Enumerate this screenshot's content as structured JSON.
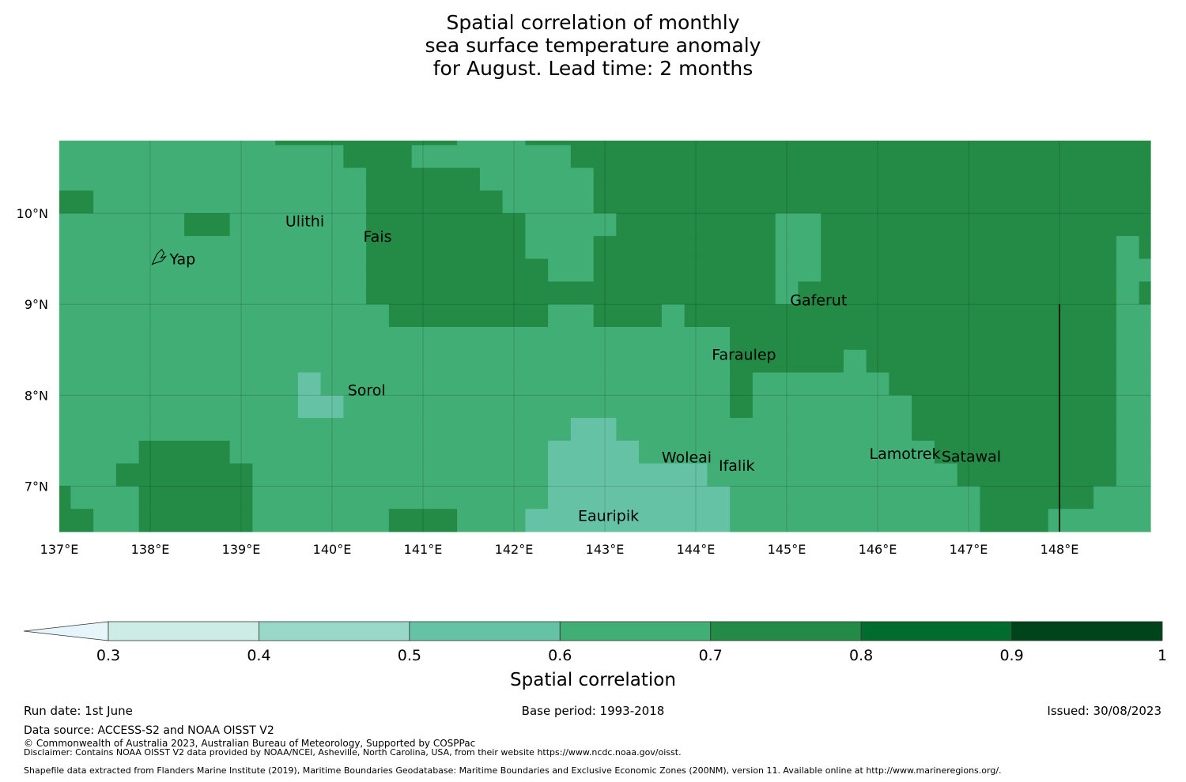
{
  "title": {
    "line1": "Spatial correlation of monthly",
    "line2": "sea surface temperature anomaly",
    "line3": "for August. Lead time: 2 months"
  },
  "map": {
    "lon_range": [
      137.0,
      149.0
    ],
    "lat_range": [
      6.5,
      10.8
    ],
    "x_ticks": [
      {
        "value": 137,
        "label": "137°E"
      },
      {
        "value": 138,
        "label": "138°E"
      },
      {
        "value": 139,
        "label": "139°E"
      },
      {
        "value": 140,
        "label": "140°E"
      },
      {
        "value": 141,
        "label": "141°E"
      },
      {
        "value": 142,
        "label": "142°E"
      },
      {
        "value": 143,
        "label": "143°E"
      },
      {
        "value": 144,
        "label": "144°E"
      },
      {
        "value": 145,
        "label": "145°E"
      },
      {
        "value": 146,
        "label": "146°E"
      },
      {
        "value": 147,
        "label": "147°E"
      },
      {
        "value": 148,
        "label": "148°E"
      }
    ],
    "y_ticks": [
      {
        "value": 10,
        "label": "10°N"
      },
      {
        "value": 9,
        "label": "9°N"
      },
      {
        "value": 8,
        "label": "8°N"
      },
      {
        "value": 7,
        "label": "7°N"
      }
    ],
    "islands": [
      {
        "name": "Yap",
        "lon": 138.1,
        "lat": 9.5
      },
      {
        "name": "Ulithi",
        "lon": 139.7,
        "lat": 9.92
      },
      {
        "name": "Fais",
        "lon": 140.5,
        "lat": 9.75
      },
      {
        "name": "Gaferut",
        "lon": 145.35,
        "lat": 9.05
      },
      {
        "name": "Faraulep",
        "lon": 144.53,
        "lat": 8.45
      },
      {
        "name": "Sorol",
        "lon": 140.38,
        "lat": 8.06
      },
      {
        "name": "Woleai",
        "lon": 143.9,
        "lat": 7.32
      },
      {
        "name": "Ifalik",
        "lon": 144.45,
        "lat": 7.23
      },
      {
        "name": "Lamotrek",
        "lon": 146.3,
        "lat": 7.36
      },
      {
        "name": "Satawal",
        "lon": 147.03,
        "lat": 7.33
      },
      {
        "name": "Eauripik",
        "lon": 143.04,
        "lat": 6.68
      }
    ],
    "boundary_line": {
      "lon": 148.0,
      "lat_from": 6.5,
      "lat_to": 9.0
    },
    "correlation_rows": [
      {
        "lat_top": 10.8,
        "lat_bottom": 10.75,
        "segments": [
          [
            137.0,
            139.375,
            0.65
          ],
          [
            139.375,
            140.25,
            0.75
          ],
          [
            140.25,
            141.375,
            0.75
          ],
          [
            141.375,
            142.125,
            0.65
          ],
          [
            142.125,
            149.0,
            0.75
          ]
        ]
      },
      {
        "lat_top": 10.75,
        "lat_bottom": 10.5,
        "segments": [
          [
            137.0,
            140.125,
            0.65
          ],
          [
            140.125,
            140.875,
            0.75
          ],
          [
            140.875,
            142.625,
            0.65
          ],
          [
            142.625,
            149.0,
            0.75
          ]
        ]
      },
      {
        "lat_top": 10.5,
        "lat_bottom": 10.25,
        "segments": [
          [
            137.0,
            140.375,
            0.65
          ],
          [
            140.375,
            141.625,
            0.75
          ],
          [
            141.625,
            141.875,
            0.65
          ],
          [
            141.875,
            142.125,
            0.65
          ],
          [
            142.125,
            142.875,
            0.65
          ],
          [
            142.875,
            149.0,
            0.75
          ]
        ]
      },
      {
        "lat_top": 10.25,
        "lat_bottom": 10.0,
        "segments": [
          [
            137.0,
            137.375,
            0.75
          ],
          [
            137.375,
            140.375,
            0.65
          ],
          [
            140.375,
            141.875,
            0.75
          ],
          [
            141.875,
            142.875,
            0.65
          ],
          [
            142.875,
            149.0,
            0.75
          ]
        ]
      },
      {
        "lat_top": 10.0,
        "lat_bottom": 9.75,
        "segments": [
          [
            137.0,
            138.375,
            0.65
          ],
          [
            138.375,
            138.875,
            0.75
          ],
          [
            138.875,
            140.375,
            0.65
          ],
          [
            140.375,
            142.125,
            0.75
          ],
          [
            142.125,
            143.125,
            0.65
          ],
          [
            143.125,
            144.875,
            0.75
          ],
          [
            144.875,
            145.375,
            0.65
          ],
          [
            145.375,
            149.0,
            0.75
          ]
        ]
      },
      {
        "lat_top": 9.75,
        "lat_bottom": 9.5,
        "segments": [
          [
            137.0,
            140.375,
            0.65
          ],
          [
            140.375,
            142.125,
            0.75
          ],
          [
            142.125,
            142.875,
            0.65
          ],
          [
            142.875,
            144.875,
            0.75
          ],
          [
            144.875,
            145.375,
            0.65
          ],
          [
            145.375,
            148.625,
            0.75
          ],
          [
            148.625,
            148.875,
            0.65
          ],
          [
            148.875,
            149.0,
            0.75
          ]
        ]
      },
      {
        "lat_top": 9.5,
        "lat_bottom": 9.25,
        "segments": [
          [
            137.0,
            140.375,
            0.65
          ],
          [
            140.375,
            142.375,
            0.75
          ],
          [
            142.375,
            142.875,
            0.65
          ],
          [
            142.875,
            144.875,
            0.75
          ],
          [
            144.875,
            145.375,
            0.65
          ],
          [
            145.375,
            148.625,
            0.75
          ],
          [
            148.625,
            149.0,
            0.65
          ]
        ]
      },
      {
        "lat_top": 9.25,
        "lat_bottom": 9.0,
        "segments": [
          [
            137.0,
            140.375,
            0.65
          ],
          [
            140.375,
            144.875,
            0.75
          ],
          [
            144.875,
            145.125,
            0.65
          ],
          [
            145.125,
            148.625,
            0.75
          ],
          [
            148.625,
            148.875,
            0.65
          ],
          [
            148.875,
            149.0,
            0.75
          ]
        ]
      },
      {
        "lat_top": 9.0,
        "lat_bottom": 8.75,
        "segments": [
          [
            137.0,
            140.625,
            0.65
          ],
          [
            140.625,
            142.375,
            0.75
          ],
          [
            142.375,
            142.875,
            0.65
          ],
          [
            142.875,
            143.625,
            0.75
          ],
          [
            143.625,
            143.875,
            0.65
          ],
          [
            143.875,
            148.625,
            0.75
          ],
          [
            148.625,
            149.0,
            0.65
          ]
        ]
      },
      {
        "lat_top": 8.75,
        "lat_bottom": 8.5,
        "segments": [
          [
            137.0,
            144.375,
            0.65
          ],
          [
            144.375,
            148.625,
            0.75
          ],
          [
            148.625,
            149.0,
            0.65
          ]
        ]
      },
      {
        "lat_top": 8.5,
        "lat_bottom": 8.25,
        "segments": [
          [
            137.0,
            144.375,
            0.65
          ],
          [
            144.375,
            145.625,
            0.75
          ],
          [
            145.625,
            145.875,
            0.65
          ],
          [
            145.875,
            148.625,
            0.75
          ],
          [
            148.625,
            149.0,
            0.65
          ]
        ]
      },
      {
        "lat_top": 8.25,
        "lat_bottom": 8.0,
        "segments": [
          [
            137.0,
            139.625,
            0.65
          ],
          [
            139.625,
            139.875,
            0.55
          ],
          [
            139.875,
            144.375,
            0.65
          ],
          [
            144.375,
            144.625,
            0.75
          ],
          [
            144.625,
            146.125,
            0.65
          ],
          [
            146.125,
            148.625,
            0.75
          ],
          [
            148.625,
            149.0,
            0.65
          ]
        ]
      },
      {
        "lat_top": 8.0,
        "lat_bottom": 7.75,
        "segments": [
          [
            137.0,
            139.625,
            0.65
          ],
          [
            139.625,
            140.125,
            0.55
          ],
          [
            140.125,
            144.375,
            0.65
          ],
          [
            144.375,
            144.625,
            0.75
          ],
          [
            144.625,
            146.375,
            0.65
          ],
          [
            146.375,
            148.625,
            0.75
          ],
          [
            148.625,
            149.0,
            0.65
          ]
        ]
      },
      {
        "lat_top": 7.75,
        "lat_bottom": 7.5,
        "segments": [
          [
            137.0,
            142.625,
            0.65
          ],
          [
            142.625,
            143.125,
            0.55
          ],
          [
            143.125,
            146.375,
            0.65
          ],
          [
            146.375,
            148.625,
            0.75
          ],
          [
            148.625,
            149.0,
            0.65
          ]
        ]
      },
      {
        "lat_top": 7.5,
        "lat_bottom": 7.25,
        "segments": [
          [
            137.0,
            137.875,
            0.65
          ],
          [
            137.875,
            138.875,
            0.75
          ],
          [
            138.875,
            142.375,
            0.65
          ],
          [
            142.375,
            143.375,
            0.55
          ],
          [
            143.375,
            146.625,
            0.65
          ],
          [
            146.625,
            148.625,
            0.75
          ],
          [
            148.625,
            149.0,
            0.65
          ]
        ]
      },
      {
        "lat_top": 7.25,
        "lat_bottom": 7.0,
        "segments": [
          [
            137.0,
            137.625,
            0.65
          ],
          [
            137.625,
            139.125,
            0.75
          ],
          [
            139.125,
            142.375,
            0.65
          ],
          [
            142.375,
            144.125,
            0.55
          ],
          [
            144.125,
            146.875,
            0.65
          ],
          [
            146.875,
            148.625,
            0.75
          ],
          [
            148.625,
            149.0,
            0.65
          ]
        ]
      },
      {
        "lat_top": 7.0,
        "lat_bottom": 6.75,
        "segments": [
          [
            137.0,
            137.125,
            0.75
          ],
          [
            137.125,
            137.875,
            0.65
          ],
          [
            137.875,
            139.125,
            0.75
          ],
          [
            139.125,
            142.375,
            0.65
          ],
          [
            142.375,
            144.375,
            0.55
          ],
          [
            144.375,
            147.125,
            0.65
          ],
          [
            147.125,
            148.375,
            0.75
          ],
          [
            148.375,
            149.0,
            0.65
          ]
        ]
      },
      {
        "lat_top": 6.75,
        "lat_bottom": 6.5,
        "segments": [
          [
            137.0,
            137.375,
            0.75
          ],
          [
            137.375,
            137.875,
            0.65
          ],
          [
            137.875,
            139.125,
            0.75
          ],
          [
            139.125,
            140.625,
            0.65
          ],
          [
            140.625,
            141.375,
            0.75
          ],
          [
            141.375,
            142.125,
            0.65
          ],
          [
            142.125,
            144.375,
            0.55
          ],
          [
            144.375,
            147.125,
            0.65
          ],
          [
            147.125,
            147.875,
            0.75
          ],
          [
            147.875,
            149.0,
            0.65
          ]
        ]
      }
    ]
  },
  "colorbar": {
    "boundaries": [
      0.3,
      0.4,
      0.5,
      0.6,
      0.7,
      0.8,
      0.9,
      1.0
    ],
    "tick_labels": [
      "0.3",
      "0.4",
      "0.5",
      "0.6",
      "0.7",
      "0.8",
      "0.9",
      "1"
    ],
    "colors": [
      "#cdece4",
      "#99d8c9",
      "#66c2a4",
      "#41ae76",
      "#238b45",
      "#006d2c",
      "#00441b"
    ],
    "extend_color": "#e5f5f9",
    "label": "Spatial correlation"
  },
  "footer": {
    "run_date": "Run date: 1st June",
    "base_period": "Base period: 1993-2018",
    "issued": "Issued: 30/08/2023",
    "data_source": "Data source: ACCESS-S2 and NOAA OISST V2",
    "copyright": "© Commonwealth of Australia 2023, Australian Bureau of Meteorology, Supported by COSPPac",
    "disclaimer": "Disclaimer: Contains NOAA OISST V2 data provided by NOAA/NCEI, Asheville, North Carolina, USA, from their website https://www.ncdc.noaa.gov/oisst.",
    "shapefile": "Shapefile data extracted from Flanders Marine Institute (2019), Maritime Boundaries Geodatabase: Maritime Boundaries and Exclusive Economic Zones (200NM), version 11. Available online at http://www.marineregions.org/."
  }
}
